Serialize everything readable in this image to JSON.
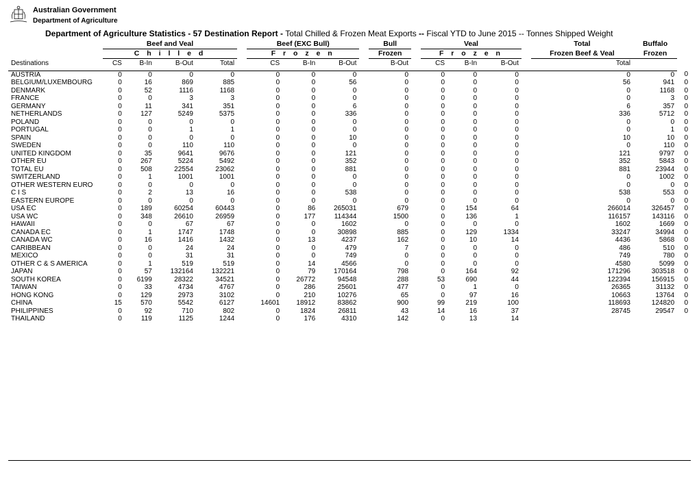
{
  "header": {
    "gov1": "Australian Government",
    "gov2": "Department of Agriculture",
    "title_bold": "Department of Agriculture Statistics - 57 Destination Report - ",
    "title_mid": "Total Chilled & Frozen Meat Exports ",
    "title_dash": "-- ",
    "title_period": "Fiscal YTD to June 2015 ",
    "title_sep": "-- ",
    "title_unit": "Tonnes Shipped Weight"
  },
  "group_headers": [
    "Beef and Veal",
    "Beef (EXC Bull)",
    "Bull",
    "Veal"
  ],
  "right_headers": {
    "total": "Total",
    "fbv": "Frozen Beef & Veal",
    "buffalo": "Buffalo",
    "frozen": "Frozen"
  },
  "sub_headers": [
    "C h i l l e d",
    "F r o z e n",
    "Frozen",
    "F r o z e n"
  ],
  "col_headers": {
    "dest": "Destinations",
    "cs": "CS",
    "bin": "B-In",
    "bout": "B-Out",
    "total": "Total"
  },
  "rows": [
    {
      "d": "AUSTRIA",
      "v": [
        "0",
        "0",
        "0",
        "0",
        "0",
        "0",
        "0",
        "0",
        "0",
        "0",
        "0",
        "0",
        "0",
        "0"
      ]
    },
    {
      "d": "BELGIUM/LUXEMBOURG",
      "v": [
        "0",
        "16",
        "869",
        "885",
        "0",
        "0",
        "56",
        "0",
        "0",
        "0",
        "0",
        "56",
        "941",
        "0"
      ]
    },
    {
      "d": "DENMARK",
      "v": [
        "0",
        "52",
        "1116",
        "1168",
        "0",
        "0",
        "0",
        "0",
        "0",
        "0",
        "0",
        "0",
        "1168",
        "0"
      ]
    },
    {
      "d": "FRANCE",
      "v": [
        "0",
        "0",
        "3",
        "3",
        "0",
        "0",
        "0",
        "0",
        "0",
        "0",
        "0",
        "0",
        "3",
        "0"
      ]
    },
    {
      "d": "GERMANY",
      "v": [
        "0",
        "11",
        "341",
        "351",
        "0",
        "0",
        "6",
        "0",
        "0",
        "0",
        "0",
        "6",
        "357",
        "0"
      ]
    },
    {
      "d": "NETHERLANDS",
      "v": [
        "0",
        "127",
        "5249",
        "5375",
        "0",
        "0",
        "336",
        "0",
        "0",
        "0",
        "0",
        "336",
        "5712",
        "0"
      ]
    },
    {
      "d": "POLAND",
      "v": [
        "0",
        "0",
        "0",
        "0",
        "0",
        "0",
        "0",
        "0",
        "0",
        "0",
        "0",
        "0",
        "0",
        "0"
      ]
    },
    {
      "d": "PORTUGAL",
      "v": [
        "0",
        "0",
        "1",
        "1",
        "0",
        "0",
        "0",
        "0",
        "0",
        "0",
        "0",
        "0",
        "1",
        "0"
      ]
    },
    {
      "d": "SPAIN",
      "v": [
        "0",
        "0",
        "0",
        "0",
        "0",
        "0",
        "10",
        "0",
        "0",
        "0",
        "0",
        "10",
        "10",
        "0"
      ]
    },
    {
      "d": "SWEDEN",
      "v": [
        "0",
        "0",
        "110",
        "110",
        "0",
        "0",
        "0",
        "0",
        "0",
        "0",
        "0",
        "0",
        "110",
        "0"
      ]
    },
    {
      "d": "UNITED KINGDOM",
      "v": [
        "0",
        "35",
        "9641",
        "9676",
        "0",
        "0",
        "121",
        "0",
        "0",
        "0",
        "0",
        "121",
        "9797",
        "0"
      ]
    },
    {
      "d": "OTHER EU",
      "v": [
        "0",
        "267",
        "5224",
        "5492",
        "0",
        "0",
        "352",
        "0",
        "0",
        "0",
        "0",
        "352",
        "5843",
        "0"
      ]
    },
    {
      "d": "TOTAL EU",
      "v": [
        "0",
        "508",
        "22554",
        "23062",
        "0",
        "0",
        "881",
        "0",
        "0",
        "0",
        "0",
        "881",
        "23944",
        "0"
      ]
    },
    {
      "d": "SWITZERLAND",
      "v": [
        "0",
        "1",
        "1001",
        "1001",
        "0",
        "0",
        "0",
        "0",
        "0",
        "0",
        "0",
        "0",
        "1002",
        "0"
      ]
    },
    {
      "d": "OTHER WESTERN EURO",
      "v": [
        "0",
        "0",
        "0",
        "0",
        "0",
        "0",
        "0",
        "0",
        "0",
        "0",
        "0",
        "0",
        "0",
        "0"
      ]
    },
    {
      "d": "C I S",
      "v": [
        "0",
        "2",
        "13",
        "16",
        "0",
        "0",
        "538",
        "0",
        "0",
        "0",
        "0",
        "538",
        "553",
        "0"
      ]
    },
    {
      "d": "EASTERN EUROPE",
      "v": [
        "0",
        "0",
        "0",
        "0",
        "0",
        "0",
        "0",
        "0",
        "0",
        "0",
        "0",
        "0",
        "0",
        "0"
      ]
    },
    {
      "d": "USA EC",
      "v": [
        "0",
        "189",
        "60254",
        "60443",
        "0",
        "86",
        "265031",
        "679",
        "0",
        "154",
        "64",
        "266014",
        "326457",
        "0"
      ]
    },
    {
      "d": "USA WC",
      "v": [
        "0",
        "348",
        "26610",
        "26959",
        "0",
        "177",
        "114344",
        "1500",
        "0",
        "136",
        "1",
        "116157",
        "143116",
        "0"
      ]
    },
    {
      "d": "HAWAII",
      "v": [
        "0",
        "0",
        "67",
        "67",
        "0",
        "0",
        "1602",
        "0",
        "0",
        "0",
        "0",
        "1602",
        "1669",
        "0"
      ]
    },
    {
      "d": "CANADA EC",
      "v": [
        "0",
        "1",
        "1747",
        "1748",
        "0",
        "0",
        "30898",
        "885",
        "0",
        "129",
        "1334",
        "33247",
        "34994",
        "0"
      ]
    },
    {
      "d": "CANADA WC",
      "v": [
        "0",
        "16",
        "1416",
        "1432",
        "0",
        "13",
        "4237",
        "162",
        "0",
        "10",
        "14",
        "4436",
        "5868",
        "0"
      ]
    },
    {
      "d": "CARIBBEAN",
      "v": [
        "0",
        "0",
        "24",
        "24",
        "0",
        "0",
        "479",
        "7",
        "0",
        "0",
        "0",
        "486",
        "510",
        "0"
      ]
    },
    {
      "d": "MEXICO",
      "v": [
        "0",
        "0",
        "31",
        "31",
        "0",
        "0",
        "749",
        "0",
        "0",
        "0",
        "0",
        "749",
        "780",
        "0"
      ]
    },
    {
      "d": "OTHER C & S AMERICA",
      "v": [
        "0",
        "1",
        "519",
        "519",
        "0",
        "14",
        "4566",
        "0",
        "0",
        "0",
        "0",
        "4580",
        "5099",
        "0"
      ]
    },
    {
      "d": "JAPAN",
      "v": [
        "0",
        "57",
        "132164",
        "132221",
        "0",
        "79",
        "170164",
        "798",
        "0",
        "164",
        "92",
        "171296",
        "303518",
        "0"
      ]
    },
    {
      "d": "SOUTH KOREA",
      "v": [
        "0",
        "6199",
        "28322",
        "34521",
        "0",
        "26772",
        "94548",
        "288",
        "53",
        "690",
        "44",
        "122394",
        "156915",
        "0"
      ]
    },
    {
      "d": "TAIWAN",
      "v": [
        "0",
        "33",
        "4734",
        "4767",
        "0",
        "286",
        "25601",
        "477",
        "0",
        "1",
        "0",
        "26365",
        "31132",
        "0"
      ]
    },
    {
      "d": "HONG KONG",
      "v": [
        "0",
        "129",
        "2973",
        "3102",
        "0",
        "210",
        "10276",
        "65",
        "0",
        "97",
        "16",
        "10663",
        "13764",
        "0"
      ]
    },
    {
      "d": "CHINA",
      "v": [
        "15",
        "570",
        "5542",
        "6127",
        "14601",
        "18912",
        "83862",
        "900",
        "99",
        "219",
        "100",
        "118693",
        "124820",
        "0"
      ]
    },
    {
      "d": "PHILIPPINES",
      "v": [
        "0",
        "92",
        "710",
        "802",
        "0",
        "1824",
        "26811",
        "43",
        "14",
        "16",
        "37",
        "28745",
        "29547",
        "0"
      ]
    },
    {
      "d": "THAILAND",
      "v": [
        "0",
        "119",
        "1125",
        "1244",
        "0",
        "176",
        "4310",
        "142",
        "0",
        "13",
        "14",
        "",
        "",
        ""
      ]
    }
  ]
}
